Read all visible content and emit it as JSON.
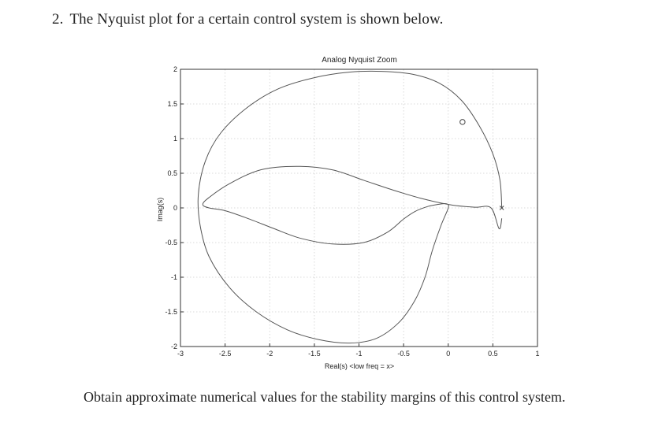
{
  "question": {
    "number": "2.",
    "text": "The Nyquist plot for a certain control system is shown below."
  },
  "chart_data": {
    "type": "line",
    "title": "Analog Nyquist Zoom",
    "xlabel": "Real(s) <low freq = x>",
    "ylabel": "Imag(s)",
    "xlim": [
      -3,
      1
    ],
    "ylim": [
      -2,
      2
    ],
    "xticks": [
      "-3",
      "-2.5",
      "-2",
      "-1.5",
      "-1",
      "-0.5",
      "0",
      "0.5",
      "1"
    ],
    "yticks": [
      "-2",
      "-1.5",
      "-1",
      "-0.5",
      "0",
      "0.5",
      "1",
      "1.5",
      "2"
    ],
    "grid": true,
    "series": [
      {
        "x": [
          0.6,
          0.58,
          0.5,
          0.35,
          0.15,
          -0.1,
          -0.4,
          -0.75,
          -1.1,
          -1.5,
          -1.9,
          -2.25,
          -2.55,
          -2.72,
          -2.8,
          -2.78,
          -2.68,
          -2.45,
          -2.15,
          -1.8,
          -1.45,
          -1.1,
          -0.8,
          -0.55,
          -0.38,
          -0.26,
          -0.18,
          -0.08,
          0.0,
          -0.02,
          -0.12,
          -0.23,
          -0.37,
          -0.5,
          -0.68,
          -0.95,
          -1.3,
          -1.65,
          -1.95,
          -2.25,
          -2.5,
          -2.68,
          -2.75,
          -2.68,
          -2.45,
          -2.1,
          -1.7,
          -1.3,
          -0.95,
          -0.6,
          -0.25,
          0.05,
          0.3,
          0.48,
          0.57,
          0.6
        ],
        "y": [
          0.0,
          0.4,
          0.78,
          1.18,
          1.55,
          1.8,
          1.93,
          1.97,
          1.96,
          1.88,
          1.72,
          1.45,
          1.08,
          0.68,
          0.2,
          -0.25,
          -0.7,
          -1.15,
          -1.5,
          -1.76,
          -1.9,
          -1.95,
          -1.88,
          -1.65,
          -1.35,
          -1.0,
          -0.62,
          -0.25,
          0.0,
          0.06,
          0.05,
          0.02,
          -0.05,
          -0.16,
          -0.35,
          -0.5,
          -0.52,
          -0.44,
          -0.3,
          -0.15,
          -0.04,
          0.0,
          0.05,
          0.15,
          0.35,
          0.55,
          0.6,
          0.55,
          0.4,
          0.25,
          0.12,
          0.04,
          0.01,
          0.0,
          -0.3,
          -0.15
        ]
      }
    ],
    "markers": [
      {
        "shape": "circle",
        "x": 0.16,
        "y": 1.24
      },
      {
        "shape": "cross",
        "x": 0.6,
        "y": 0.0
      }
    ]
  },
  "footer": {
    "text": "Obtain approximate numerical values for the stability margins of this control system."
  }
}
